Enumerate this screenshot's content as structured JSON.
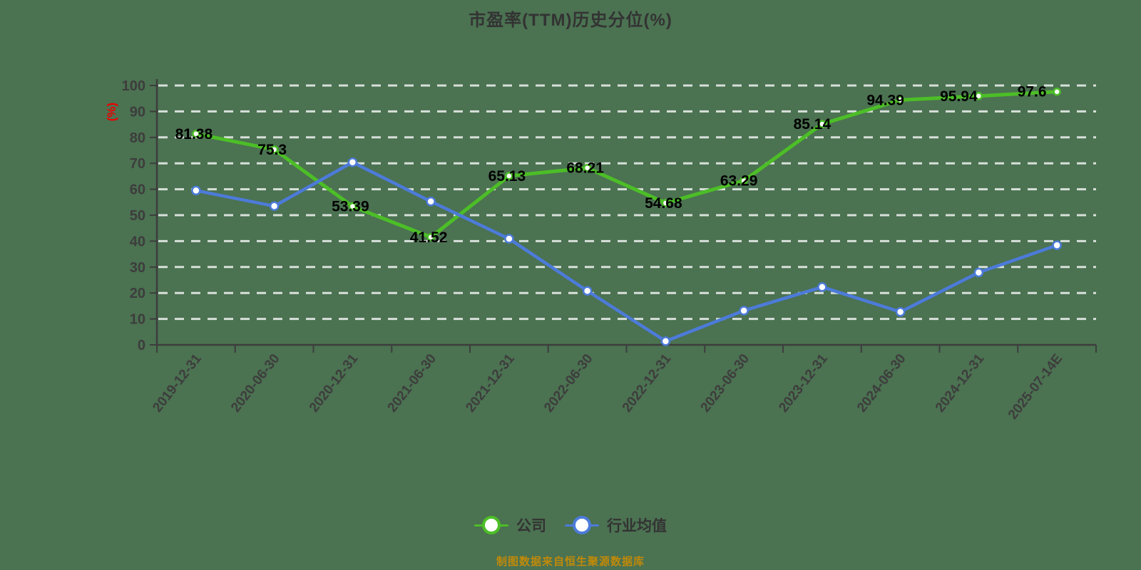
{
  "title": "市盈率(TTM)历史分位(%)",
  "footer": {
    "text": "制图数据来自恒生聚源数据库"
  },
  "colors": {
    "background": "#4B7251",
    "company_line": "#4CBE27",
    "industry_line": "#4C7BD9",
    "axis_text": "#3D3D3D",
    "grid_line": "#FFFFFF",
    "value_label": "#000000",
    "y_unit_label": "#EC0000",
    "title_text": "#333333",
    "footer_text": "#C08A0A"
  },
  "chart_data": {
    "type": "line",
    "title": "市盈率(TTM)历史分位(%)",
    "xlabel": "",
    "ylabel": "(%)",
    "ylim": [
      0,
      100
    ],
    "ytick_step": 10,
    "grid": "horizontal-dashed",
    "legend_position": "bottom",
    "categories": [
      "2019-12-31",
      "2020-06-30",
      "2020-12-31",
      "2021-06-30",
      "2021-12-31",
      "2022-06-30",
      "2022-12-31",
      "2023-06-30",
      "2023-12-31",
      "2024-06-30",
      "2024-12-31",
      "2025-07-14E"
    ],
    "series": [
      {
        "name": "公司",
        "color": "#4CBE27",
        "marker": "white-circle",
        "show_value_labels": true,
        "values": [
          81.38,
          75.3,
          53.39,
          41.52,
          65.13,
          68.21,
          54.68,
          63.29,
          85.14,
          94.39,
          95.94,
          97.6
        ]
      },
      {
        "name": "行业均值",
        "color": "#4C7BD9",
        "marker": "white-circle",
        "show_value_labels": false,
        "values": [
          59.5,
          53.5,
          70.4,
          55.3,
          40.9,
          20.8,
          1.4,
          13.2,
          22.3,
          12.7,
          27.9,
          38.4
        ]
      }
    ]
  }
}
